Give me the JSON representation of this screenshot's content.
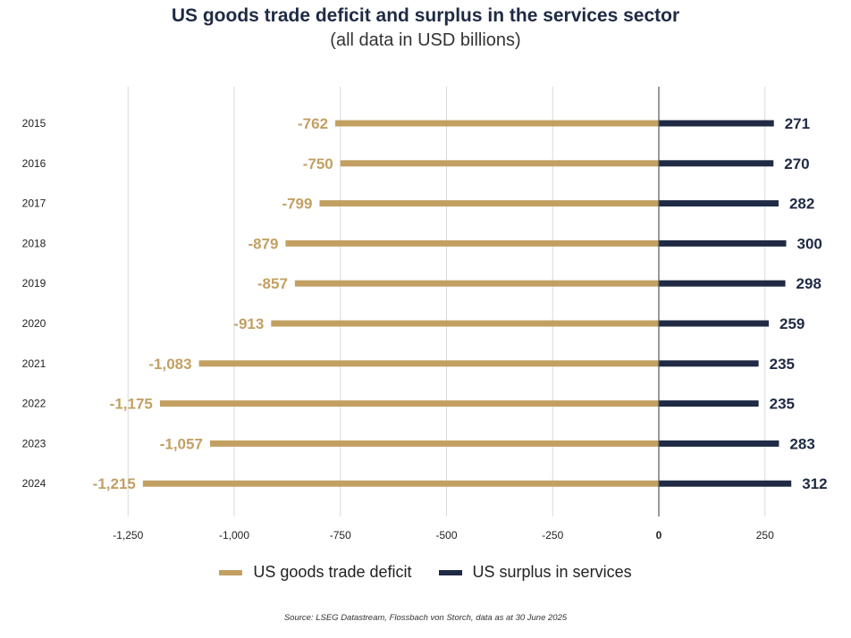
{
  "title": "US goods trade deficit and surplus in the services sector",
  "subtitle": "(all data in USD billions)",
  "source": "Source: LSEG Datastream, Flossbach von Storch, data as at 30 June 2025",
  "colors": {
    "deficit": "#c2a062",
    "surplus": "#1f2a44",
    "grid": "#d9d9d9",
    "axis": "#555555"
  },
  "chart_data": {
    "type": "bar",
    "orientation": "horizontal",
    "categories": [
      "2015",
      "2016",
      "2017",
      "2018",
      "2019",
      "2020",
      "2021",
      "2022",
      "2023",
      "2024"
    ],
    "series": [
      {
        "name": "US goods trade deficit",
        "values": [
          -762,
          -750,
          -799,
          -879,
          -857,
          -913,
          -1083,
          -1175,
          -1057,
          -1215
        ],
        "labels": [
          "-762",
          "-750",
          "-799",
          "-879",
          "-857",
          "-913",
          "-1,083",
          "-1,175",
          "-1,057",
          "-1,215"
        ]
      },
      {
        "name": "US surplus in services",
        "values": [
          271,
          270,
          282,
          300,
          298,
          259,
          235,
          235,
          283,
          312
        ],
        "labels": [
          "271",
          "270",
          "282",
          "300",
          "298",
          "259",
          "235",
          "235",
          "283",
          "312"
        ]
      }
    ],
    "xlim": [
      -1250,
      250
    ],
    "xticks": [
      -1250,
      -1000,
      -750,
      -500,
      -250,
      0,
      250
    ],
    "xtick_labels": [
      "-1,250",
      "-1,000",
      "-750",
      "-500",
      "-250",
      "0",
      "250"
    ],
    "grid": true,
    "legend": "bottom-center"
  }
}
